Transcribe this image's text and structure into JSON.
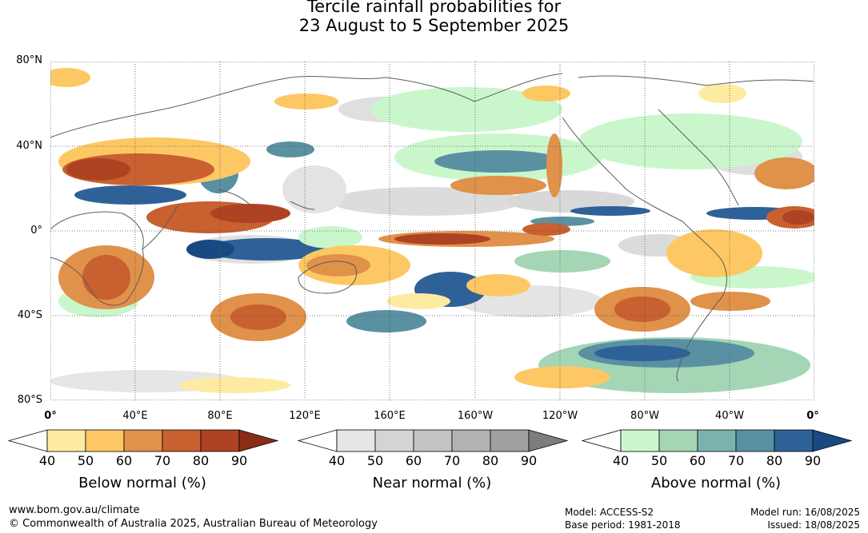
{
  "title": {
    "line1": "Tercile rainfall probabilities for",
    "line2": "23 August to 5 September 2025"
  },
  "map": {
    "lat_labels": [
      "80°N",
      "40°N",
      "0°",
      "40°S",
      "80°S"
    ],
    "lon_labels": [
      "0°",
      "40°E",
      "80°E",
      "120°E",
      "160°E",
      "160°W",
      "120°W",
      "80°W",
      "40°W",
      "0°"
    ],
    "gridlines": "dotted"
  },
  "legends": [
    {
      "caption": "Below normal (%)",
      "ticks": [
        "40",
        "50",
        "60",
        "70",
        "80",
        "90"
      ],
      "colors": [
        "#ffffff",
        "#fdeba1",
        "#fdc863",
        "#e0914a",
        "#c8602f",
        "#ad4322",
        "#8a2d17"
      ]
    },
    {
      "caption": "Near normal (%)",
      "ticks": [
        "40",
        "50",
        "60",
        "70",
        "80",
        "90"
      ],
      "colors": [
        "#ffffff",
        "#e6e6e6",
        "#d4d4d4",
        "#c3c3c3",
        "#b2b2b2",
        "#a0a0a0",
        "#7d7d7d"
      ]
    },
    {
      "caption": "Above normal (%)",
      "ticks": [
        "40",
        "50",
        "60",
        "70",
        "80",
        "90"
      ],
      "colors": [
        "#ffffff",
        "#c9f7cb",
        "#a4d6b6",
        "#7cb2ad",
        "#5a91a2",
        "#2f6199",
        "#184983"
      ]
    }
  ],
  "footer": {
    "website": "www.bom.gov.au/climate",
    "copyright": "© Commonwealth of Australia 2025, Australian Bureau of Meteorology",
    "model": "Model: ACCESS-S2",
    "base_period": "Base period: 1981-2018",
    "model_run": "Model run: 16/08/2025",
    "issued": "Issued: 18/08/2025"
  }
}
